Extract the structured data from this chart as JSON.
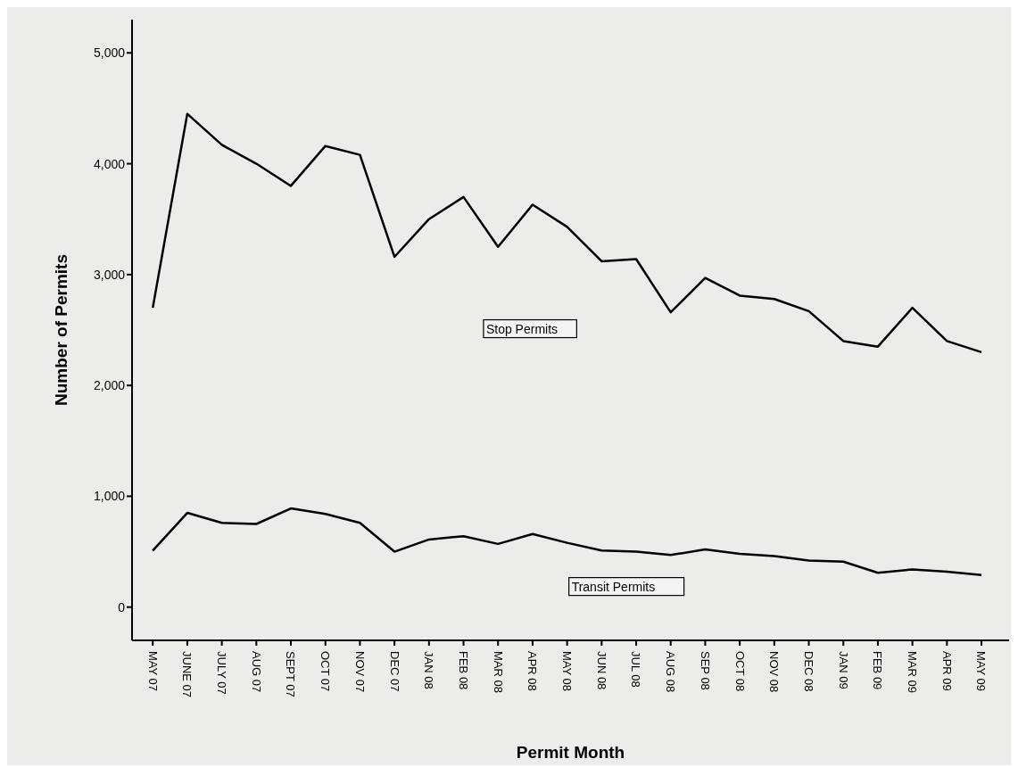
{
  "chart_data": {
    "type": "line",
    "xlabel": "Permit Month",
    "ylabel": "Number of Permits",
    "categories": [
      "MAY 07",
      "JUNE 07",
      "JULY 07",
      "AUG 07",
      "SEPT 07",
      "OCT 07",
      "NOV 07",
      "DEC 07",
      "JAN 08",
      "FEB 08",
      "MAR 08",
      "APR 08",
      "MAY 08",
      "JUN 08",
      "JUL 08",
      "AUG 08",
      "SEP 08",
      "OCT 08",
      "NOV 08",
      "DEC 08",
      "JAN 09",
      "FEB 09",
      "MAR 09",
      "APR 09",
      "MAY 09"
    ],
    "series": [
      {
        "name": "Stop Permits",
        "color": "#000000",
        "values": [
          2700,
          4450,
          4170,
          4000,
          3800,
          4160,
          4080,
          3160,
          3500,
          3700,
          3250,
          3630,
          3430,
          3120,
          3140,
          2660,
          2970,
          2810,
          2780,
          2670,
          2400,
          2350,
          2700,
          2400,
          2300
        ]
      },
      {
        "name": "Transit Permits",
        "color": "#000000",
        "values": [
          510,
          850,
          760,
          750,
          890,
          840,
          760,
          500,
          610,
          640,
          570,
          660,
          580,
          510,
          500,
          470,
          520,
          480,
          460,
          420,
          410,
          310,
          340,
          320,
          290
        ]
      }
    ],
    "ylim": [
      -300,
      5300
    ],
    "yticks": [
      {
        "value": 0,
        "label": "0"
      },
      {
        "value": 1000,
        "label": "1,000"
      },
      {
        "value": 2000,
        "label": "2,000"
      },
      {
        "value": 3000,
        "label": "3,000"
      },
      {
        "value": 4000,
        "label": "4,000"
      },
      {
        "value": 5000,
        "label": "5,000"
      }
    ],
    "grid": false,
    "marker": "none",
    "line_style": "solid"
  }
}
